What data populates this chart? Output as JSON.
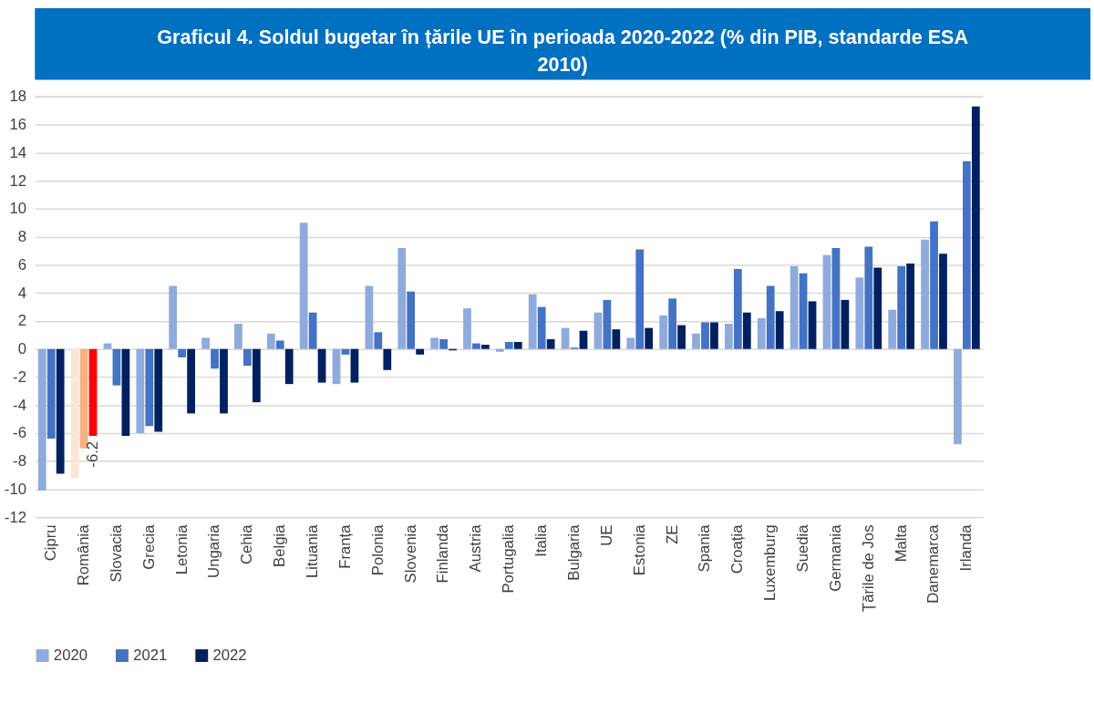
{
  "chart_data": {
    "type": "bar",
    "title": "Graficul 4. Soldul bugetar în țările UE în perioada 2020-2022 (% din PIB, standarde ESA 2010)",
    "categories": [
      "Cipru",
      "România",
      "Slovacia",
      "Grecia",
      "Letonia",
      "Ungaria",
      "Cehia",
      "Belgia",
      "Lituania",
      "Franța",
      "Polonia",
      "Slovenia",
      "Finlanda",
      "Austria",
      "Portugalia",
      "Italia",
      "Bulgaria",
      "UE",
      "Estonia",
      "ZE",
      "Spania",
      "Croația",
      "Luxemburg",
      "Suedia",
      "Germania",
      "Țările de Jos",
      "Malta",
      "Danemarca",
      "Irlanda"
    ],
    "series": [
      {
        "name": "2020",
        "color": "#8faadc",
        "colors": [
          "#8faadc",
          "#fbe5d6",
          "#8faadc",
          "#8faadc",
          "#8faadc",
          "#8faadc",
          "#8faadc",
          "#8faadc",
          "#8faadc",
          "#8faadc",
          "#8faadc",
          "#8faadc",
          "#8faadc",
          "#8faadc",
          "#8faadc",
          "#8faadc",
          "#8faadc",
          "#8faadc",
          "#8faadc",
          "#8faadc",
          "#8faadc",
          "#8faadc",
          "#8faadc",
          "#8faadc",
          "#8faadc",
          "#8faadc",
          "#8faadc",
          "#8faadc",
          "#8faadc"
        ],
        "values": [
          -10.1,
          -9.2,
          0.4,
          -6.0,
          4.5,
          0.8,
          1.8,
          1.1,
          9.0,
          -2.5,
          4.5,
          7.2,
          0.8,
          2.9,
          -0.2,
          3.9,
          1.5,
          2.6,
          0.8,
          2.4,
          1.1,
          1.8,
          2.2,
          5.9,
          6.7,
          5.1,
          2.8,
          7.8,
          -6.8
        ]
      },
      {
        "name": "2021",
        "color": "#4472c4",
        "colors": [
          "#4472c4",
          "#f4b183",
          "#4472c4",
          "#4472c4",
          "#4472c4",
          "#4472c4",
          "#4472c4",
          "#4472c4",
          "#4472c4",
          "#4472c4",
          "#4472c4",
          "#4472c4",
          "#4472c4",
          "#4472c4",
          "#4472c4",
          "#4472c4",
          "#4472c4",
          "#4472c4",
          "#4472c4",
          "#4472c4",
          "#4472c4",
          "#4472c4",
          "#4472c4",
          "#4472c4",
          "#4472c4",
          "#4472c4",
          "#4472c4",
          "#4472c4",
          "#4472c4"
        ],
        "values": [
          -6.4,
          -7.1,
          -2.6,
          -5.5,
          -0.6,
          -1.4,
          -1.2,
          0.6,
          2.6,
          -0.4,
          1.2,
          4.1,
          0.7,
          0.4,
          0.5,
          3.0,
          0.1,
          3.5,
          7.1,
          3.6,
          1.9,
          5.7,
          4.5,
          5.4,
          7.2,
          7.3,
          5.9,
          9.1,
          13.4
        ]
      },
      {
        "name": "2022",
        "color": "#002060",
        "colors": [
          "#002060",
          "#ff0000",
          "#002060",
          "#002060",
          "#002060",
          "#002060",
          "#002060",
          "#002060",
          "#002060",
          "#002060",
          "#002060",
          "#002060",
          "#002060",
          "#002060",
          "#002060",
          "#002060",
          "#002060",
          "#002060",
          "#002060",
          "#002060",
          "#002060",
          "#002060",
          "#002060",
          "#002060",
          "#002060",
          "#002060",
          "#002060",
          "#002060",
          "#002060"
        ],
        "values": [
          -8.9,
          -6.2,
          -6.2,
          -5.9,
          -4.6,
          -4.6,
          -3.8,
          -2.5,
          -2.4,
          -2.4,
          -1.5,
          -0.4,
          -0.1,
          0.3,
          0.5,
          0.7,
          1.3,
          1.4,
          1.5,
          1.7,
          1.9,
          2.6,
          2.7,
          3.4,
          3.5,
          5.8,
          6.1,
          6.8,
          17.3
        ],
        "value_labels": [
          null,
          "-6.2",
          null,
          null,
          null,
          null,
          null,
          null,
          null,
          null,
          null,
          null,
          null,
          null,
          null,
          null,
          null,
          null,
          null,
          null,
          null,
          null,
          null,
          null,
          null,
          null,
          null,
          null,
          null
        ]
      }
    ],
    "ylim": [
      -12,
      18
    ],
    "yticks": [
      -12,
      -10,
      -8,
      -6,
      -4,
      -2,
      0,
      2,
      4,
      6,
      8,
      10,
      12,
      14,
      16,
      18
    ],
    "grid": "y",
    "legend": "bottom"
  }
}
